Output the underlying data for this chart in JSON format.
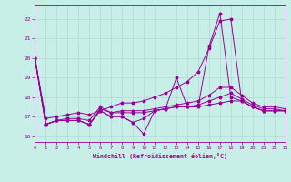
{
  "xlabel": "Windchill (Refroidissement éolien,°C)",
  "background_color": "#c8eee8",
  "grid_color": "#b0d8d0",
  "line_color": "#990099",
  "xlim": [
    0,
    23
  ],
  "ylim": [
    15.7,
    22.7
  ],
  "yticks": [
    16,
    17,
    18,
    19,
    20,
    21,
    22
  ],
  "xticks": [
    0,
    1,
    2,
    3,
    4,
    5,
    6,
    7,
    8,
    9,
    10,
    11,
    12,
    13,
    14,
    15,
    16,
    17,
    18,
    19,
    20,
    21,
    22,
    23
  ],
  "lines": [
    {
      "x": [
        0,
        1,
        2,
        3,
        4,
        5,
        6,
        7,
        8,
        9,
        10,
        11,
        12,
        13,
        14,
        15,
        16,
        17,
        18,
        19,
        20,
        21,
        22,
        23
      ],
      "y": [
        20.0,
        16.9,
        17.0,
        17.1,
        17.2,
        17.1,
        17.3,
        17.5,
        17.7,
        17.7,
        17.8,
        18.0,
        18.2,
        18.5,
        18.8,
        19.3,
        20.5,
        21.9,
        22.0,
        17.8,
        17.5,
        17.3,
        17.3,
        17.3
      ]
    },
    {
      "x": [
        0,
        1,
        2,
        3,
        4,
        5,
        6,
        7,
        8,
        9,
        10,
        11,
        12,
        13,
        14,
        15,
        16,
        17,
        18,
        19,
        20,
        21,
        22,
        23
      ],
      "y": [
        20.0,
        16.6,
        16.8,
        16.8,
        16.8,
        16.6,
        17.3,
        17.0,
        17.0,
        16.7,
        16.1,
        17.3,
        17.4,
        19.0,
        17.5,
        17.5,
        20.6,
        22.3,
        18.0,
        17.8,
        17.5,
        17.3,
        17.3,
        17.3
      ]
    },
    {
      "x": [
        0,
        1,
        2,
        3,
        4,
        5,
        6,
        7,
        8,
        9,
        10,
        11,
        12,
        13,
        14,
        15,
        16,
        17,
        18,
        19,
        20,
        21,
        22,
        23
      ],
      "y": [
        20.0,
        16.6,
        16.8,
        16.8,
        16.8,
        16.6,
        17.3,
        17.0,
        17.0,
        16.7,
        16.9,
        17.3,
        17.4,
        17.5,
        17.5,
        17.5,
        17.6,
        17.7,
        17.8,
        17.8,
        17.5,
        17.3,
        17.3,
        17.3
      ]
    },
    {
      "x": [
        0,
        1,
        2,
        3,
        4,
        5,
        6,
        7,
        8,
        9,
        10,
        11,
        12,
        13,
        14,
        15,
        16,
        17,
        18,
        19,
        20,
        21,
        22,
        23
      ],
      "y": [
        20.0,
        16.6,
        16.8,
        16.8,
        16.8,
        16.6,
        17.4,
        17.2,
        17.2,
        17.2,
        17.2,
        17.3,
        17.4,
        17.5,
        17.5,
        17.6,
        17.8,
        18.0,
        18.2,
        17.9,
        17.6,
        17.4,
        17.4,
        17.3
      ]
    },
    {
      "x": [
        0,
        1,
        2,
        3,
        4,
        5,
        6,
        7,
        8,
        9,
        10,
        11,
        12,
        13,
        14,
        15,
        16,
        17,
        18,
        19,
        20,
        21,
        22,
        23
      ],
      "y": [
        20.0,
        16.6,
        16.8,
        16.9,
        16.9,
        16.8,
        17.5,
        17.2,
        17.3,
        17.3,
        17.3,
        17.4,
        17.5,
        17.6,
        17.7,
        17.8,
        18.1,
        18.5,
        18.5,
        18.1,
        17.7,
        17.5,
        17.5,
        17.4
      ]
    }
  ]
}
